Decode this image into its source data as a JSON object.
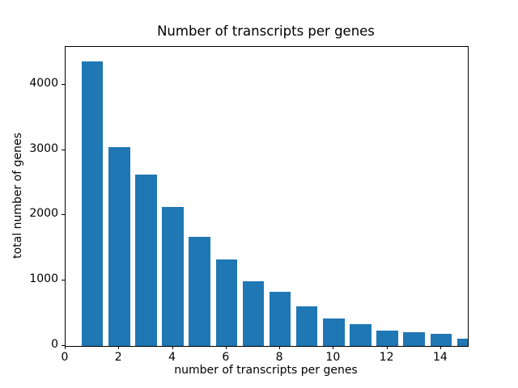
{
  "chart_data": {
    "type": "bar",
    "title": "Number of transcripts per genes",
    "xlabel": "number of transcripts per genes",
    "ylabel": "total number of genes",
    "categories": [
      1,
      2,
      3,
      4,
      5,
      6,
      7,
      8,
      9,
      10,
      11,
      12,
      13,
      14,
      15
    ],
    "values": [
      4360,
      3040,
      2620,
      2135,
      1670,
      1325,
      985,
      830,
      610,
      420,
      340,
      230,
      205,
      185,
      115
    ],
    "bar_color": "#1f77b4",
    "bar_width": 0.8,
    "xlim": [
      0,
      15
    ],
    "ylim": [
      0,
      4580
    ],
    "xticks": [
      0,
      2,
      4,
      6,
      8,
      10,
      12,
      14
    ],
    "yticks": [
      0,
      1000,
      2000,
      3000,
      4000
    ],
    "grid": false,
    "legend": null,
    "background_color": "#ffffff",
    "spine_color": "#000000"
  }
}
